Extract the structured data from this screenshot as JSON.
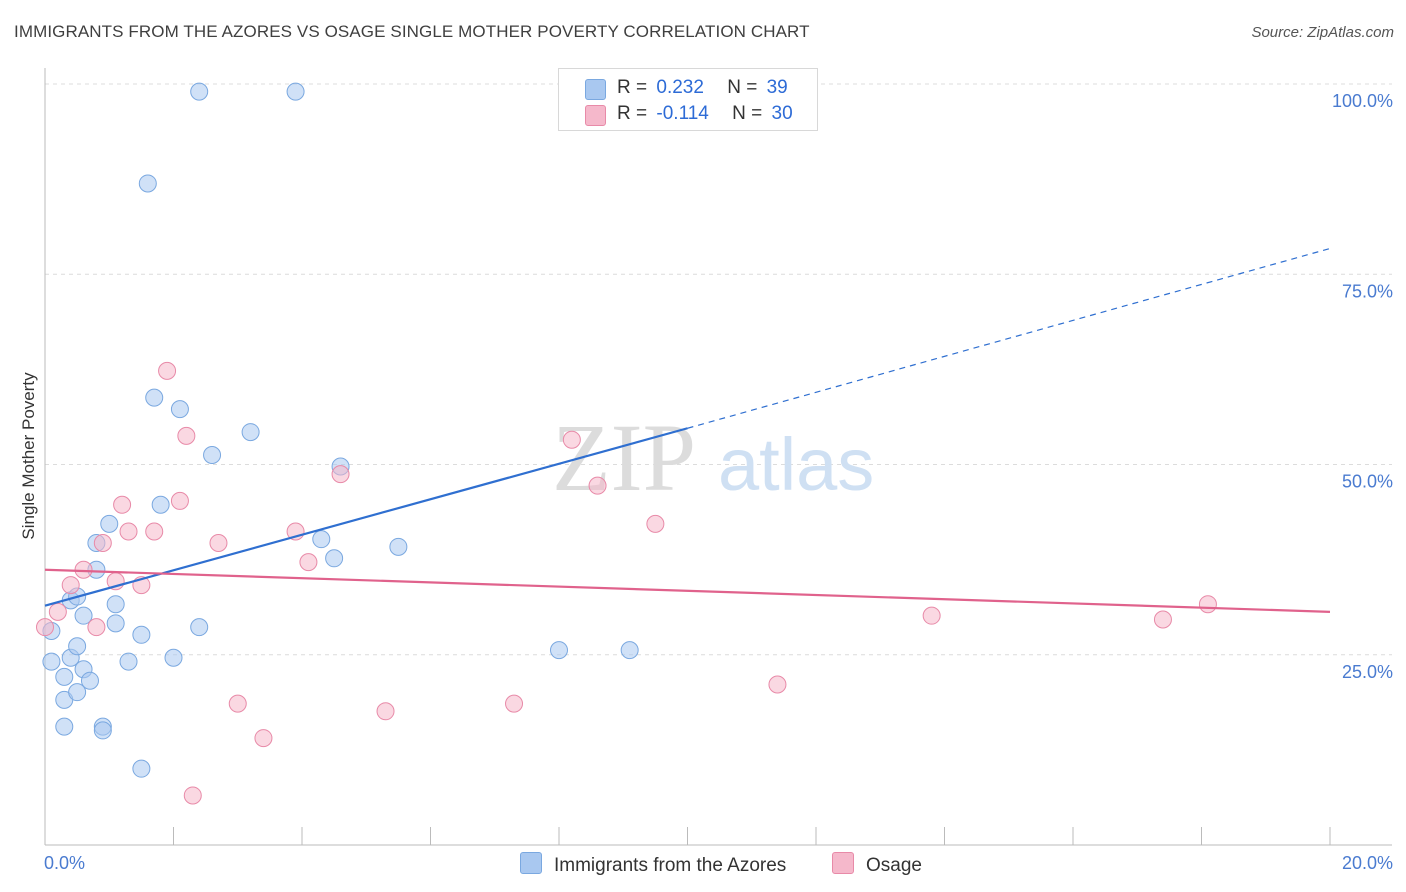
{
  "header": {
    "title": "IMMIGRANTS FROM THE AZORES VS OSAGE SINGLE MOTHER POVERTY CORRELATION CHART",
    "source": "Source: ZipAtlas.com"
  },
  "watermark": {
    "zip": "ZIP",
    "atlas": "atlas"
  },
  "legend": {
    "rows": [
      {
        "r_label": "R =",
        "r_value": "0.232",
        "n_label": "N =",
        "n_value": "39",
        "color": "#a9c8f0"
      },
      {
        "r_label": "R =",
        "r_value": "-0.114",
        "n_label": "N =",
        "n_value": "30",
        "color": "#f5b8cb"
      }
    ]
  },
  "bottom_legend": {
    "series1": "Immigrants from the Azores",
    "series2": "Osage"
  },
  "chart_data": {
    "type": "scatter",
    "title": "IMMIGRANTS FROM THE AZORES VS OSAGE SINGLE MOTHER POVERTY CORRELATION CHART",
    "xlabel": "",
    "ylabel": "Single Mother Poverty",
    "xlim": [
      0,
      20
    ],
    "ylim": [
      0,
      100
    ],
    "x_tick_labels": [
      "0.0%",
      "20.0%"
    ],
    "y_tick_labels": [
      "100.0%",
      "75.0%",
      "50.0%",
      "25.0%"
    ],
    "y_ticks": [
      100,
      75,
      50,
      25
    ],
    "series": [
      {
        "name": "Immigrants from the Azores",
        "color": "#a9c8f0",
        "stroke": "#7aa8e0",
        "trend_color": "#2f6fd0",
        "trend": {
          "x0": 0,
          "y0": 31.8,
          "x1": 10,
          "y1": 55.0,
          "dash_x1": 20,
          "dash_y1": 78.5
        },
        "points": [
          [
            0.1,
            28.5
          ],
          [
            0.1,
            24.5
          ],
          [
            0.3,
            22.5
          ],
          [
            0.3,
            19.5
          ],
          [
            0.3,
            16.0
          ],
          [
            0.4,
            25.0
          ],
          [
            0.4,
            32.5
          ],
          [
            0.5,
            20.5
          ],
          [
            0.5,
            33.0
          ],
          [
            0.5,
            26.5
          ],
          [
            0.6,
            30.5
          ],
          [
            0.6,
            23.5
          ],
          [
            0.7,
            22.0
          ],
          [
            0.8,
            40.0
          ],
          [
            0.8,
            36.5
          ],
          [
            0.9,
            16.0
          ],
          [
            0.9,
            15.5
          ],
          [
            1.0,
            42.5
          ],
          [
            1.1,
            29.5
          ],
          [
            1.1,
            32.0
          ],
          [
            1.3,
            24.5
          ],
          [
            1.5,
            28.0
          ],
          [
            1.5,
            10.5
          ],
          [
            1.6,
            87.0
          ],
          [
            1.7,
            59.0
          ],
          [
            1.8,
            45.0
          ],
          [
            2.0,
            25.0
          ],
          [
            2.1,
            57.5
          ],
          [
            2.4,
            99.0
          ],
          [
            2.4,
            29.0
          ],
          [
            2.6,
            51.5
          ],
          [
            3.2,
            54.5
          ],
          [
            3.9,
            99.0
          ],
          [
            4.3,
            40.5
          ],
          [
            4.5,
            38.0
          ],
          [
            4.6,
            50.0
          ],
          [
            5.5,
            39.5
          ],
          [
            8.0,
            26.0
          ],
          [
            9.1,
            26.0
          ]
        ]
      },
      {
        "name": "Osage",
        "color": "#f5b8cb",
        "stroke": "#e88aa8",
        "trend_color": "#e0628c",
        "trend": {
          "x0": 0,
          "y0": 36.5,
          "x1": 20,
          "y1": 31.0
        },
        "points": [
          [
            0.0,
            29.0
          ],
          [
            0.2,
            31.0
          ],
          [
            0.4,
            34.5
          ],
          [
            0.6,
            36.5
          ],
          [
            0.8,
            29.0
          ],
          [
            0.9,
            40.0
          ],
          [
            1.1,
            35.0
          ],
          [
            1.2,
            45.0
          ],
          [
            1.3,
            41.5
          ],
          [
            1.5,
            34.5
          ],
          [
            1.7,
            41.5
          ],
          [
            1.9,
            62.5
          ],
          [
            2.1,
            45.5
          ],
          [
            2.2,
            54.0
          ],
          [
            2.3,
            7.0
          ],
          [
            2.7,
            40.0
          ],
          [
            3.0,
            19.0
          ],
          [
            3.4,
            14.5
          ],
          [
            3.9,
            41.5
          ],
          [
            4.1,
            37.5
          ],
          [
            4.6,
            49.0
          ],
          [
            5.3,
            18.0
          ],
          [
            7.3,
            19.0
          ],
          [
            8.2,
            53.5
          ],
          [
            8.6,
            47.5
          ],
          [
            9.5,
            42.5
          ],
          [
            11.4,
            21.5
          ],
          [
            13.8,
            30.5
          ],
          [
            17.4,
            30.0
          ],
          [
            18.1,
            32.0
          ]
        ]
      }
    ]
  }
}
